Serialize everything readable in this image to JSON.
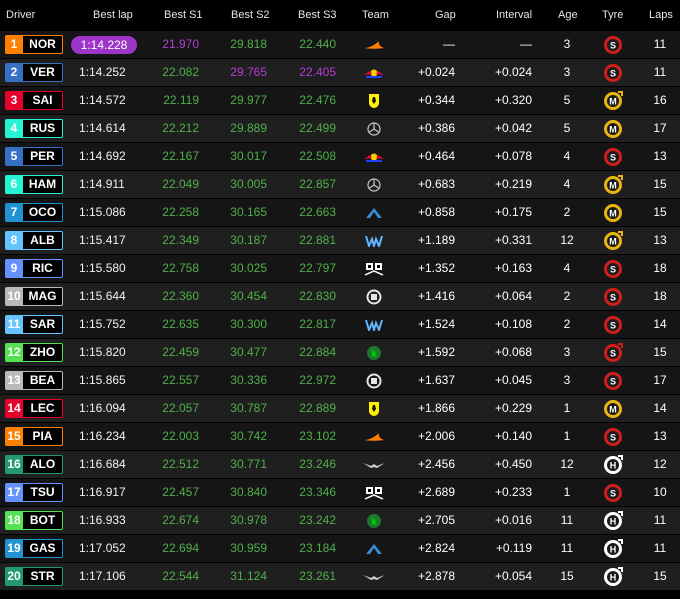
{
  "columns": {
    "driver": "Driver",
    "best_lap": "Best lap",
    "s1": "Best S1",
    "s2": "Best S2",
    "s3": "Best S3",
    "team": "Team",
    "gap": "Gap",
    "interval": "Interval",
    "age": "Age",
    "tyre": "Tyre",
    "laps": "Laps"
  },
  "colors": {
    "green": "#4fb04a",
    "purple": "#b33ed6",
    "fastest_lap_pill": "#9d35c9",
    "soft": "#d21d1d",
    "medium": "#e9b50f",
    "hard": "#ffffff"
  },
  "rows": [
    {
      "pos": "1",
      "code": "NOR",
      "team_color": "#ff8000",
      "best_lap": "1:14.228",
      "best_lap_fastest": true,
      "s1": "21.970",
      "s1_color": "purple",
      "s2": "29.818",
      "s2_color": "green",
      "s3": "22.440",
      "s3_color": "green",
      "team_icon": "mclaren-logo-icon",
      "gap": "—",
      "interval": "—",
      "age": "3",
      "tyre": "S",
      "tyre_used": false,
      "laps": "11"
    },
    {
      "pos": "2",
      "code": "VER",
      "team_color": "#3671c6",
      "best_lap": "1:14.252",
      "best_lap_fastest": false,
      "s1": "22.082",
      "s1_color": "green",
      "s2": "29.765",
      "s2_color": "purple",
      "s3": "22.405",
      "s3_color": "purple",
      "team_icon": "red-bull-logo-icon",
      "gap": "+0.024",
      "interval": "+0.024",
      "age": "3",
      "tyre": "S",
      "tyre_used": false,
      "laps": "11"
    },
    {
      "pos": "3",
      "code": "SAI",
      "team_color": "#e8002d",
      "best_lap": "1:14.572",
      "best_lap_fastest": false,
      "s1": "22.119",
      "s1_color": "green",
      "s2": "29.977",
      "s2_color": "green",
      "s3": "22.476",
      "s3_color": "green",
      "team_icon": "ferrari-logo-icon",
      "gap": "+0.344",
      "interval": "+0.320",
      "age": "5",
      "tyre": "M",
      "tyre_used": true,
      "laps": "16"
    },
    {
      "pos": "4",
      "code": "RUS",
      "team_color": "#27f4d2",
      "best_lap": "1:14.614",
      "best_lap_fastest": false,
      "s1": "22.212",
      "s1_color": "green",
      "s2": "29.889",
      "s2_color": "green",
      "s3": "22.499",
      "s3_color": "green",
      "team_icon": "mercedes-logo-icon",
      "gap": "+0.386",
      "interval": "+0.042",
      "age": "5",
      "tyre": "M",
      "tyre_used": false,
      "laps": "17"
    },
    {
      "pos": "5",
      "code": "PER",
      "team_color": "#3671c6",
      "best_lap": "1:14.692",
      "best_lap_fastest": false,
      "s1": "22.167",
      "s1_color": "green",
      "s2": "30.017",
      "s2_color": "green",
      "s3": "22.508",
      "s3_color": "green",
      "team_icon": "red-bull-logo-icon",
      "gap": "+0.464",
      "interval": "+0.078",
      "age": "4",
      "tyre": "S",
      "tyre_used": false,
      "laps": "13"
    },
    {
      "pos": "6",
      "code": "HAM",
      "team_color": "#27f4d2",
      "best_lap": "1:14.911",
      "best_lap_fastest": false,
      "s1": "22.049",
      "s1_color": "green",
      "s2": "30.005",
      "s2_color": "green",
      "s3": "22.857",
      "s3_color": "green",
      "team_icon": "mercedes-logo-icon",
      "gap": "+0.683",
      "interval": "+0.219",
      "age": "4",
      "tyre": "M",
      "tyre_used": true,
      "laps": "15"
    },
    {
      "pos": "7",
      "code": "OCO",
      "team_color": "#2293d1",
      "best_lap": "1:15.086",
      "best_lap_fastest": false,
      "s1": "22.258",
      "s1_color": "green",
      "s2": "30.165",
      "s2_color": "green",
      "s3": "22.663",
      "s3_color": "green",
      "team_icon": "alpine-logo-icon",
      "gap": "+0.858",
      "interval": "+0.175",
      "age": "2",
      "tyre": "M",
      "tyre_used": false,
      "laps": "15"
    },
    {
      "pos": "8",
      "code": "ALB",
      "team_color": "#64c4ff",
      "best_lap": "1:15.417",
      "best_lap_fastest": false,
      "s1": "22.349",
      "s1_color": "green",
      "s2": "30.187",
      "s2_color": "green",
      "s3": "22.881",
      "s3_color": "green",
      "team_icon": "williams-logo-icon",
      "gap": "+1.189",
      "interval": "+0.331",
      "age": "12",
      "tyre": "M",
      "tyre_used": true,
      "laps": "13"
    },
    {
      "pos": "9",
      "code": "RIC",
      "team_color": "#6692ff",
      "best_lap": "1:15.580",
      "best_lap_fastest": false,
      "s1": "22.758",
      "s1_color": "green",
      "s2": "30.025",
      "s2_color": "green",
      "s3": "22.797",
      "s3_color": "green",
      "team_icon": "rb-logo-icon",
      "gap": "+1.352",
      "interval": "+0.163",
      "age": "4",
      "tyre": "S",
      "tyre_used": false,
      "laps": "18"
    },
    {
      "pos": "10",
      "code": "MAG",
      "team_color": "#b6babd",
      "best_lap": "1:15.644",
      "best_lap_fastest": false,
      "s1": "22.360",
      "s1_color": "green",
      "s2": "30.454",
      "s2_color": "green",
      "s3": "22.830",
      "s3_color": "green",
      "team_icon": "haas-logo-icon",
      "gap": "+1.416",
      "interval": "+0.064",
      "age": "2",
      "tyre": "S",
      "tyre_used": false,
      "laps": "18"
    },
    {
      "pos": "11",
      "code": "SAR",
      "team_color": "#64c4ff",
      "best_lap": "1:15.752",
      "best_lap_fastest": false,
      "s1": "22.635",
      "s1_color": "green",
      "s2": "30.300",
      "s2_color": "green",
      "s3": "22.817",
      "s3_color": "green",
      "team_icon": "williams-logo-icon",
      "gap": "+1.524",
      "interval": "+0.108",
      "age": "2",
      "tyre": "S",
      "tyre_used": false,
      "laps": "14"
    },
    {
      "pos": "12",
      "code": "ZHO",
      "team_color": "#52e252",
      "best_lap": "1:15.820",
      "best_lap_fastest": false,
      "s1": "22.459",
      "s1_color": "green",
      "s2": "30.477",
      "s2_color": "green",
      "s3": "22.884",
      "s3_color": "green",
      "team_icon": "kick-sauber-logo-icon",
      "gap": "+1.592",
      "interval": "+0.068",
      "age": "3",
      "tyre": "S",
      "tyre_used": true,
      "laps": "15"
    },
    {
      "pos": "13",
      "code": "BEA",
      "team_color": "#b6babd",
      "best_lap": "1:15.865",
      "best_lap_fastest": false,
      "s1": "22.557",
      "s1_color": "green",
      "s2": "30.336",
      "s2_color": "green",
      "s3": "22.972",
      "s3_color": "green",
      "team_icon": "haas-logo-icon",
      "gap": "+1.637",
      "interval": "+0.045",
      "age": "3",
      "tyre": "S",
      "tyre_used": false,
      "laps": "17"
    },
    {
      "pos": "14",
      "code": "LEC",
      "team_color": "#e8002d",
      "best_lap": "1:16.094",
      "best_lap_fastest": false,
      "s1": "22.057",
      "s1_color": "green",
      "s2": "30.787",
      "s2_color": "green",
      "s3": "22.889",
      "s3_color": "green",
      "team_icon": "ferrari-logo-icon",
      "gap": "+1.866",
      "interval": "+0.229",
      "age": "1",
      "tyre": "M",
      "tyre_used": false,
      "laps": "14"
    },
    {
      "pos": "15",
      "code": "PIA",
      "team_color": "#ff8000",
      "best_lap": "1:16.234",
      "best_lap_fastest": false,
      "s1": "22.003",
      "s1_color": "green",
      "s2": "30.742",
      "s2_color": "green",
      "s3": "23.102",
      "s3_color": "green",
      "team_icon": "mclaren-logo-icon",
      "gap": "+2.006",
      "interval": "+0.140",
      "age": "1",
      "tyre": "S",
      "tyre_used": false,
      "laps": "13"
    },
    {
      "pos": "16",
      "code": "ALO",
      "team_color": "#229971",
      "best_lap": "1:16.684",
      "best_lap_fastest": false,
      "s1": "22.512",
      "s1_color": "green",
      "s2": "30.771",
      "s2_color": "green",
      "s3": "23.246",
      "s3_color": "green",
      "team_icon": "aston-martin-logo-icon",
      "gap": "+2.456",
      "interval": "+0.450",
      "age": "12",
      "tyre": "H",
      "tyre_used": true,
      "laps": "12"
    },
    {
      "pos": "17",
      "code": "TSU",
      "team_color": "#6692ff",
      "best_lap": "1:16.917",
      "best_lap_fastest": false,
      "s1": "22.457",
      "s1_color": "green",
      "s2": "30.840",
      "s2_color": "green",
      "s3": "23.346",
      "s3_color": "green",
      "team_icon": "rb-logo-icon",
      "gap": "+2.689",
      "interval": "+0.233",
      "age": "1",
      "tyre": "S",
      "tyre_used": false,
      "laps": "10"
    },
    {
      "pos": "18",
      "code": "BOT",
      "team_color": "#52e252",
      "best_lap": "1:16.933",
      "best_lap_fastest": false,
      "s1": "22.674",
      "s1_color": "green",
      "s2": "30.978",
      "s2_color": "green",
      "s3": "23.242",
      "s3_color": "green",
      "team_icon": "kick-sauber-logo-icon",
      "gap": "+2.705",
      "interval": "+0.016",
      "age": "11",
      "tyre": "H",
      "tyre_used": true,
      "laps": "11"
    },
    {
      "pos": "19",
      "code": "GAS",
      "team_color": "#2293d1",
      "best_lap": "1:17.052",
      "best_lap_fastest": false,
      "s1": "22.694",
      "s1_color": "green",
      "s2": "30.959",
      "s2_color": "green",
      "s3": "23.184",
      "s3_color": "green",
      "team_icon": "alpine-logo-icon",
      "gap": "+2.824",
      "interval": "+0.119",
      "age": "11",
      "tyre": "H",
      "tyre_used": true,
      "laps": "11"
    },
    {
      "pos": "20",
      "code": "STR",
      "team_color": "#229971",
      "best_lap": "1:17.106",
      "best_lap_fastest": false,
      "s1": "22.544",
      "s1_color": "green",
      "s2": "31.124",
      "s2_color": "green",
      "s3": "23.261",
      "s3_color": "green",
      "team_icon": "aston-martin-logo-icon",
      "gap": "+2.878",
      "interval": "+0.054",
      "age": "15",
      "tyre": "H",
      "tyre_used": true,
      "laps": "15"
    }
  ]
}
